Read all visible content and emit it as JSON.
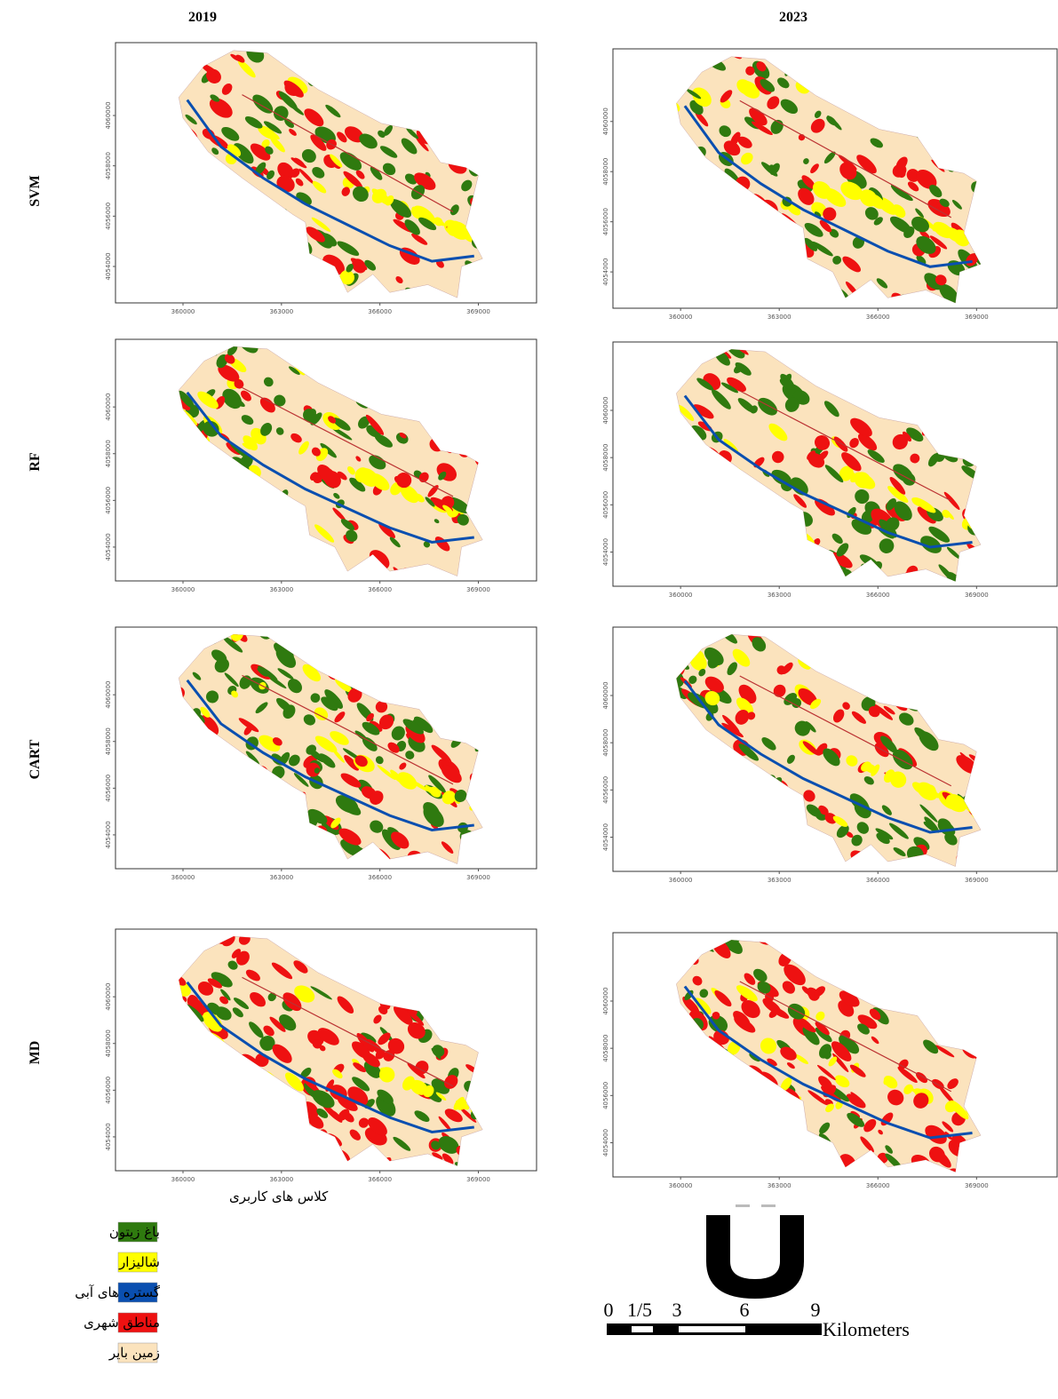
{
  "columns": [
    "2019",
    "2023"
  ],
  "rows": [
    "SVM",
    "RF",
    "CART",
    "MD"
  ],
  "map_axes": {
    "x_ticks": [
      360000,
      363000,
      366000,
      369000
    ],
    "y_ticks": [
      4060000,
      4058000,
      4056000,
      4054000
    ]
  },
  "legend": {
    "title": "کلاس های کاربری",
    "items": [
      {
        "label": "باغ زیتون",
        "color": "#2f7a0f"
      },
      {
        "label": "شالیزار",
        "color": "#ffff00"
      },
      {
        "label": "گستره های آبی",
        "color": "#0a4fb0"
      },
      {
        "label": "مناطق شهری",
        "color": "#ee1111"
      },
      {
        "label": "زمین بایر",
        "color": "#fbe3bd"
      }
    ]
  },
  "scale_bar": {
    "ticks": [
      0,
      "1/5",
      3,
      6,
      9
    ],
    "unit": "Kilometers"
  }
}
